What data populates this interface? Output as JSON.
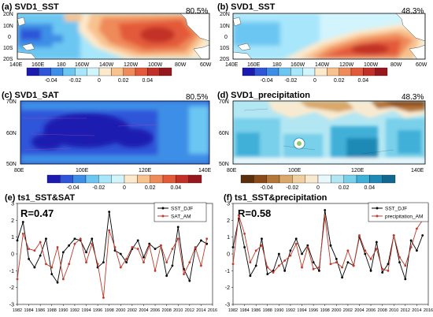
{
  "colors": {
    "dneg": [
      "#1b1bb0",
      "#2f55d8",
      "#3c8ee6",
      "#6cc6f2",
      "#a7e6fb",
      "#d2f4fd"
    ],
    "dpos": [
      "#fde9cc",
      "#f8c28e",
      "#ef8a5a",
      "#e35a3b",
      "#c23127",
      "#96171c"
    ],
    "brown": [
      "#5c2f0c",
      "#8a4a1a",
      "#b5763a",
      "#d9a86a",
      "#efd09e",
      "#f8ead0"
    ],
    "teal": [
      "#e8f7fb",
      "#b3e6f3",
      "#79d0ea",
      "#3fb0d8",
      "#1f8ab5",
      "#106790"
    ],
    "black_series": "#000000",
    "red_series": "#c0392b"
  },
  "panels": {
    "a": {
      "title": "(a) SVD1_SST",
      "pct": "80.5%",
      "lat_ticks": [
        "20N",
        "10N",
        "0",
        "10S",
        "20S"
      ],
      "lon_ticks": [
        "140E",
        "160E",
        "180",
        "160W",
        "140W",
        "120W",
        "100W",
        "80W",
        "60W"
      ]
    },
    "b": {
      "title": "(b) SVD1_SST",
      "pct": "48.3%",
      "lat_ticks": [
        "20N",
        "10N",
        "0",
        "10S",
        "20S"
      ],
      "lon_ticks": [
        "140E",
        "160E",
        "180",
        "160W",
        "140W",
        "120W",
        "100W",
        "80W",
        "60W"
      ]
    },
    "c": {
      "title": "(c) SVD1_SAT",
      "pct": "80.5%",
      "lat_ticks": [
        "70N",
        "60N",
        "50N"
      ],
      "lon_ticks": [
        "80E",
        "100E",
        "120E",
        "140E"
      ]
    },
    "d": {
      "title": "(d) SVD1_precipitation",
      "pct": "48.3%",
      "lat_ticks": [
        "70N",
        "60N",
        "50N"
      ],
      "lon_ticks": [
        "80E",
        "100E",
        "120E",
        "140E"
      ]
    },
    "e": {
      "title": "(e) ts1_SST&SAT",
      "stat": "R=0.47",
      "legend": [
        "SST_DJF",
        "SAT_AM"
      ]
    },
    "f": {
      "title": "(f) ts1_SST&precipitation",
      "stat": "R=0.58",
      "legend": [
        "SST_DJF",
        "precipitation_AM"
      ]
    }
  },
  "colorbar_labels": [
    "-0.04",
    "-0.02",
    "0",
    "0.02",
    "0.04"
  ],
  "ts_y_ticks": [
    "3",
    "2",
    "1",
    "0",
    "-1",
    "-2",
    "-3"
  ],
  "ts_x_ticks": [
    "1982",
    "1984",
    "1986",
    "1988",
    "1990",
    "1992",
    "1994",
    "1996",
    "1998",
    "2000",
    "2002",
    "2004",
    "2006",
    "2008",
    "2010",
    "2012",
    "2014",
    "2016"
  ],
  "chart_data": [
    {
      "type": "line",
      "title": "(e) ts1_SST&SAT",
      "annotation": "R=0.47",
      "x": [
        1982,
        1983,
        1984,
        1985,
        1986,
        1987,
        1988,
        1989,
        1990,
        1991,
        1992,
        1993,
        1994,
        1995,
        1996,
        1997,
        1998,
        1999,
        2000,
        2001,
        2002,
        2003,
        2004,
        2005,
        2006,
        2007,
        2008,
        2009,
        2010,
        2011,
        2012,
        2013,
        2014,
        2015
      ],
      "ylim": [
        -3,
        3
      ],
      "xlim": [
        1982,
        2016
      ],
      "series": [
        {
          "name": "SST_DJF",
          "values": [
            0.8,
            1.9,
            -0.3,
            -0.8,
            -0.1,
            0.9,
            -1.2,
            -1.7,
            0.1,
            0.5,
            0.9,
            0.8,
            0.1,
            0.9,
            -0.8,
            -0.5,
            2.5,
            0.2,
            0.0,
            -0.5,
            0.3,
            0.8,
            -0.2,
            0.6,
            0.3,
            0.5,
            -1.3,
            -0.7,
            1.6,
            -0.9,
            -1.6,
            0.3,
            0.8,
            0.6
          ]
        },
        {
          "name": "SAT_AM",
          "values": [
            -1.5,
            1.2,
            0.3,
            0.2,
            0.7,
            -0.6,
            -0.8,
            0.4,
            -1.5,
            -0.6,
            0.6,
            0.9,
            -0.5,
            0.6,
            -0.6,
            -2.6,
            1.4,
            0.4,
            -0.8,
            -0.3,
            0.4,
            0.3,
            -0.5,
            0.5,
            -1.0,
            0.5,
            -0.5,
            0.3,
            0.9,
            -1.2,
            -0.5,
            0.4,
            -0.7,
            0.9
          ]
        }
      ]
    },
    {
      "type": "line",
      "title": "(f) ts1_SST&precipitation",
      "annotation": "R=0.58",
      "x": [
        1982,
        1983,
        1984,
        1985,
        1986,
        1987,
        1988,
        1989,
        1990,
        1991,
        1992,
        1993,
        1994,
        1995,
        1996,
        1997,
        1998,
        1999,
        2000,
        2001,
        2002,
        2003,
        2004,
        2005,
        2006,
        2007,
        2008,
        2009,
        2010,
        2011,
        2012,
        2013,
        2014,
        2015
      ],
      "ylim": [
        -3,
        3
      ],
      "xlim": [
        1982,
        2016
      ],
      "series": [
        {
          "name": "SST_DJF",
          "values": [
            0.4,
            2.1,
            0.4,
            -1.3,
            -0.7,
            0.9,
            -1.2,
            -1.0,
            0.0,
            -1.0,
            0.2,
            0.9,
            0.0,
            0.5,
            -0.5,
            -1.0,
            2.6,
            0.5,
            -0.3,
            -1.4,
            -0.5,
            -0.7,
            1.0,
            0.0,
            -1.0,
            0.7,
            -1.1,
            -0.6,
            1.1,
            -0.5,
            -1.5,
            0.8,
            0.2,
            1.1
          ]
        },
        {
          "name": "precipitation_AM",
          "values": [
            -0.6,
            2.3,
            1.2,
            -0.5,
            0.2,
            0.5,
            -0.8,
            -1.1,
            -0.7,
            -0.4,
            -0.1,
            0.6,
            -0.8,
            0.4,
            -0.9,
            -0.8,
            2.2,
            -0.6,
            -0.5,
            -0.8,
            0.2,
            -0.7,
            1.1,
            0.2,
            -0.3,
            0.3,
            -0.9,
            -1.0,
            1.1,
            -0.2,
            -0.7,
            0.4,
            1.5,
            2.0
          ]
        }
      ]
    }
  ]
}
